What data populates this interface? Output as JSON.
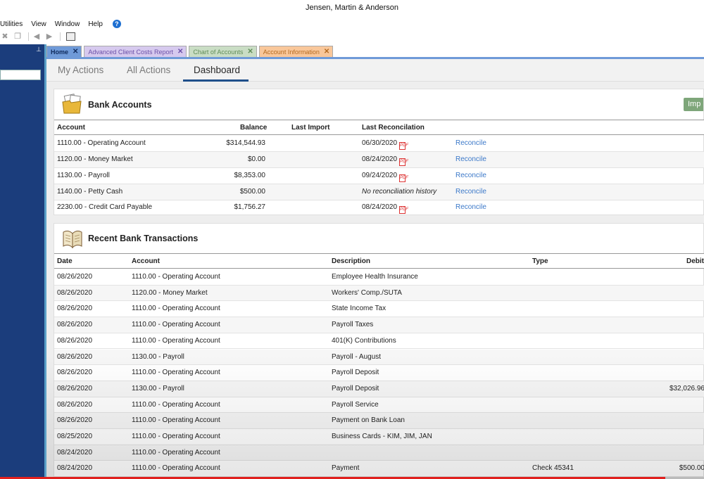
{
  "window": {
    "title": "Jensen, Martin & Anderson"
  },
  "menu": {
    "items": [
      "Utilities",
      "View",
      "Window",
      "Help"
    ]
  },
  "tabs": [
    {
      "label": "Home"
    },
    {
      "label": "Advanced Client Costs Report"
    },
    {
      "label": "Chart of Accounts"
    },
    {
      "label": "Account Information"
    }
  ],
  "subtabs": {
    "my_actions": "My Actions",
    "all_actions": "All Actions",
    "dashboard": "Dashboard"
  },
  "bank_accounts": {
    "title": "Bank Accounts",
    "import_label": "Imp",
    "columns": {
      "account": "Account",
      "balance": "Balance",
      "last_import": "Last Import",
      "last_reconciliation": "Last Reconcilation"
    },
    "rows": [
      {
        "account": "1110.00 - Operating Account",
        "balance": "$314,544.93",
        "last_import": "",
        "last_reconciliation": "06/30/2020",
        "pdf": true,
        "action": "Reconcile"
      },
      {
        "account": "1120.00 - Money Market",
        "balance": "$0.00",
        "last_import": "",
        "last_reconciliation": "08/24/2020",
        "pdf": true,
        "action": "Reconcile"
      },
      {
        "account": "1130.00 - Payroll",
        "balance": "$8,353.00",
        "last_import": "",
        "last_reconciliation": "09/24/2020",
        "pdf": true,
        "action": "Reconcile"
      },
      {
        "account": "1140.00 - Petty Cash",
        "balance": "$500.00",
        "last_import": "",
        "last_reconciliation": "No reconciliation history",
        "pdf": false,
        "action": "Reconcile"
      },
      {
        "account": "2230.00 - Credit Card Payable",
        "balance": "$1,756.27",
        "last_import": "",
        "last_reconciliation": "08/24/2020",
        "pdf": true,
        "action": "Reconcile"
      }
    ]
  },
  "recent_transactions": {
    "title": "Recent Bank Transactions",
    "columns": {
      "date": "Date",
      "account": "Account",
      "description": "Description",
      "type": "Type",
      "debit": "Debit"
    },
    "rows": [
      {
        "date": "08/26/2020",
        "account": "1110.00 - Operating Account",
        "description": "Employee Health Insurance",
        "type": "",
        "debit": ""
      },
      {
        "date": "08/26/2020",
        "account": "1120.00 - Money Market",
        "description": "Workers' Comp./SUTA",
        "type": "",
        "debit": ""
      },
      {
        "date": "08/26/2020",
        "account": "1110.00 - Operating Account",
        "description": "State Income Tax",
        "type": "",
        "debit": ""
      },
      {
        "date": "08/26/2020",
        "account": "1110.00 - Operating Account",
        "description": "Payroll Taxes",
        "type": "",
        "debit": ""
      },
      {
        "date": "08/26/2020",
        "account": "1110.00 - Operating Account",
        "description": "401(K) Contributions",
        "type": "",
        "debit": ""
      },
      {
        "date": "08/26/2020",
        "account": "1130.00 - Payroll",
        "description": "Payroll - August",
        "type": "",
        "debit": ""
      },
      {
        "date": "08/26/2020",
        "account": "1110.00 - Operating Account",
        "description": "Payroll Deposit",
        "type": "",
        "debit": ""
      },
      {
        "date": "08/26/2020",
        "account": "1130.00 - Payroll",
        "description": "Payroll Deposit",
        "type": "",
        "debit": "$32,026.96"
      },
      {
        "date": "08/26/2020",
        "account": "1110.00 - Operating Account",
        "description": "Payroll Service",
        "type": "",
        "debit": ""
      },
      {
        "date": "08/26/2020",
        "account": "1110.00 - Operating Account",
        "description": "Payment on Bank Loan",
        "type": "",
        "debit": ""
      },
      {
        "date": "08/25/2020",
        "account": "1110.00 - Operating Account",
        "description": "Business Cards - KIM, JIM, JAN",
        "type": "",
        "debit": ""
      },
      {
        "date": "08/24/2020",
        "account": "1110.00 - Operating Account",
        "description": "",
        "type": "",
        "debit": ""
      },
      {
        "date": "08/24/2020",
        "account": "1110.00 - Operating Account",
        "description": "Payment",
        "type": "Check 45341",
        "debit": "$500.00"
      }
    ]
  },
  "icons": {
    "help": "help-icon",
    "bank": "folder-icon",
    "transactions": "ledger-book-icon",
    "pdf": "pdf-icon",
    "close": "close-icon"
  },
  "colors": {
    "sidebar": "#1b3d7c",
    "home_tab": "#6f9ad8",
    "link": "#3c79c9",
    "import_button": "#7ea67a",
    "progress": "#e0201e"
  },
  "video_progress": 0.945
}
